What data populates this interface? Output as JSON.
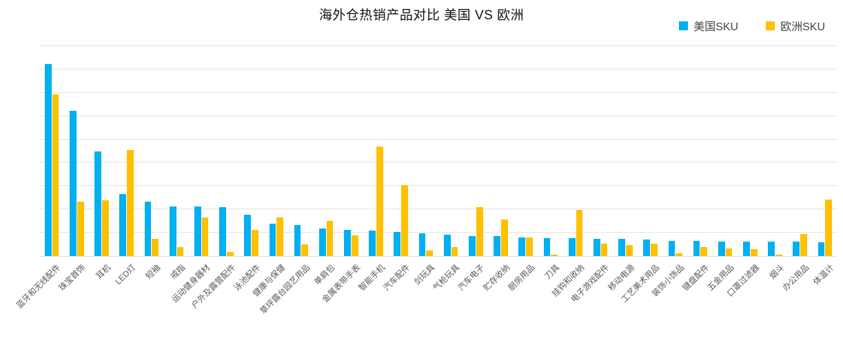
{
  "chart_data": {
    "type": "bar",
    "title": "海外仓热销产品对比 美国 VS 欧洲",
    "categories": [
      "蓝牙和无线配件",
      "珠宝首饰",
      "耳机",
      "LED灯",
      "短袖",
      "戒指",
      "运动健身器材",
      "户外及露营配件",
      "泳池配件",
      "健康与保健",
      "草坪露台园艺用品",
      "单肩包",
      "金属表带手表",
      "智能手机",
      "汽车配件",
      "剑玩具",
      "气枪玩具",
      "汽车电子",
      "贮存收纳",
      "厨房用品",
      "刀具",
      "挂钩和收纳",
      "电子游戏配件",
      "移动电源",
      "工艺美术用品",
      "装饰小饰品",
      "键盘配件",
      "五金用品",
      "口罩过滤器",
      "烟斗",
      "办公用品",
      "体温计"
    ],
    "series": [
      {
        "name": "美国SKU",
        "color": "#00B0F0",
        "values": [
          823,
          622,
          449,
          266,
          233,
          212,
          212,
          210,
          177,
          139,
          134,
          118,
          112,
          109,
          102,
          98,
          91,
          87,
          85,
          81,
          77,
          77,
          75,
          74,
          71,
          66,
          64,
          63,
          63,
          62,
          61,
          60
        ]
      },
      {
        "name": "欧洲SKU",
        "color": "#FFC000",
        "values": [
          694,
          233,
          239,
          455,
          75,
          38,
          164,
          19,
          113,
          166,
          50,
          152,
          89,
          468,
          305,
          25,
          38,
          211,
          156,
          80,
          5,
          197,
          54,
          46,
          54,
          13,
          38,
          33,
          31,
          5,
          95,
          242
        ]
      }
    ],
    "xlabel": "",
    "ylabel": "",
    "ylim": [
      0,
      900
    ],
    "gridline_interval": 100,
    "grid": true,
    "y_axis_tick_labels_visible": false,
    "legend_position": "top-right",
    "background": "#ffffff",
    "gridline_color": "#e2e2e2"
  }
}
